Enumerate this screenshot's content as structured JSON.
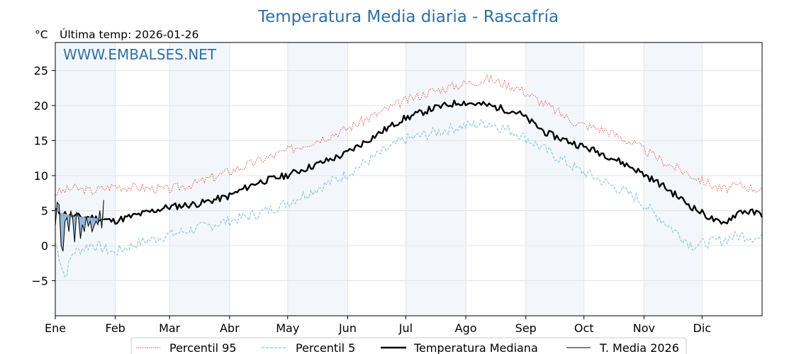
{
  "chart_data": {
    "type": "line",
    "title": "Temperatura Media diaria - Rascafría",
    "unit_label": "°C",
    "subtitle": "Última temp: 2026-01-26",
    "watermark": "WWW.EMBALSES.NET",
    "ylim": [
      -10,
      29
    ],
    "y_ticks": [
      25,
      20,
      15,
      10,
      5,
      0,
      -5
    ],
    "y_tick_labels": [
      "25",
      "20",
      "15",
      "10",
      "5",
      "0",
      "−5"
    ],
    "x_range_days": [
      1,
      366
    ],
    "months": [
      {
        "label": "Ene",
        "start_day": 1
      },
      {
        "label": "Feb",
        "start_day": 32
      },
      {
        "label": "Mar",
        "start_day": 60
      },
      {
        "label": "Abr",
        "start_day": 91
      },
      {
        "label": "May",
        "start_day": 121
      },
      {
        "label": "Jun",
        "start_day": 152
      },
      {
        "label": "Jul",
        "start_day": 182
      },
      {
        "label": "Ago",
        "start_day": 213
      },
      {
        "label": "Sep",
        "start_day": 244
      },
      {
        "label": "Oct",
        "start_day": 274
      },
      {
        "label": "Nov",
        "start_day": 305
      },
      {
        "label": "Dic",
        "start_day": 335
      }
    ],
    "shaded_months": [
      "Ene",
      "Mar",
      "May",
      "Jul",
      "Sep",
      "Nov"
    ],
    "grid": true,
    "series": [
      {
        "name": "Percentil 95",
        "style": "dotted",
        "color": "#e8302a",
        "x": [
          1,
          10,
          20,
          31,
          45,
          59,
          75,
          90,
          105,
          120,
          135,
          150,
          165,
          180,
          195,
          210,
          225,
          240,
          255,
          270,
          285,
          300,
          315,
          330,
          345,
          355,
          366
        ],
        "y": [
          7.5,
          8.2,
          7.8,
          8.5,
          8.3,
          8.0,
          9.0,
          10.5,
          12.0,
          13.5,
          15.0,
          16.5,
          18.5,
          20.5,
          22.0,
          23.0,
          23.8,
          22.5,
          20.0,
          17.5,
          16.5,
          14.5,
          12.0,
          10.0,
          8.0,
          8.6,
          8.0
        ]
      },
      {
        "name": "Percentil 5",
        "style": "dashed",
        "color": "#8ec8e0",
        "x": [
          1,
          6,
          10,
          20,
          31,
          45,
          59,
          75,
          90,
          105,
          120,
          135,
          150,
          165,
          180,
          195,
          210,
          225,
          240,
          255,
          270,
          285,
          300,
          315,
          330,
          345,
          355,
          366
        ],
        "y": [
          0.5,
          -4.5,
          -1.0,
          0.2,
          -1.0,
          0.5,
          1.5,
          2.5,
          3.5,
          4.5,
          6.0,
          8.0,
          10.0,
          12.5,
          15.0,
          16.0,
          17.0,
          17.5,
          16.0,
          13.5,
          11.0,
          9.0,
          7.0,
          3.5,
          0.0,
          0.8,
          1.5,
          1.0
        ]
      },
      {
        "name": "Temperatura Mediana",
        "style": "thick",
        "color": "#000000",
        "x": [
          1,
          10,
          20,
          31,
          45,
          59,
          75,
          90,
          105,
          120,
          135,
          150,
          165,
          180,
          195,
          210,
          225,
          240,
          255,
          270,
          285,
          300,
          315,
          330,
          345,
          355,
          366
        ],
        "y": [
          5.0,
          4.2,
          4.0,
          3.5,
          4.5,
          5.5,
          6.0,
          7.0,
          9.0,
          10.0,
          11.5,
          13.0,
          15.5,
          18.0,
          19.5,
          20.5,
          20.0,
          19.0,
          16.0,
          14.5,
          13.0,
          11.0,
          8.5,
          5.5,
          3.0,
          5.0,
          4.5
        ]
      },
      {
        "name": "T. Media 2026",
        "style": "thin",
        "color": "#000000",
        "fill": "#8fb5d8",
        "x": [
          1,
          2,
          3,
          4,
          5,
          6,
          7,
          8,
          9,
          10,
          11,
          12,
          13,
          14,
          15,
          16,
          17,
          18,
          19,
          20,
          21,
          22,
          23,
          24,
          25,
          26
        ],
        "y": [
          2.8,
          6.2,
          5.8,
          0.0,
          -0.8,
          3.5,
          4.0,
          2.0,
          5.0,
          3.8,
          0.5,
          4.8,
          4.0,
          1.0,
          3.0,
          2.0,
          4.2,
          2.8,
          3.5,
          2.0,
          2.8,
          3.5,
          3.0,
          5.0,
          2.5,
          6.5
        ]
      }
    ]
  }
}
